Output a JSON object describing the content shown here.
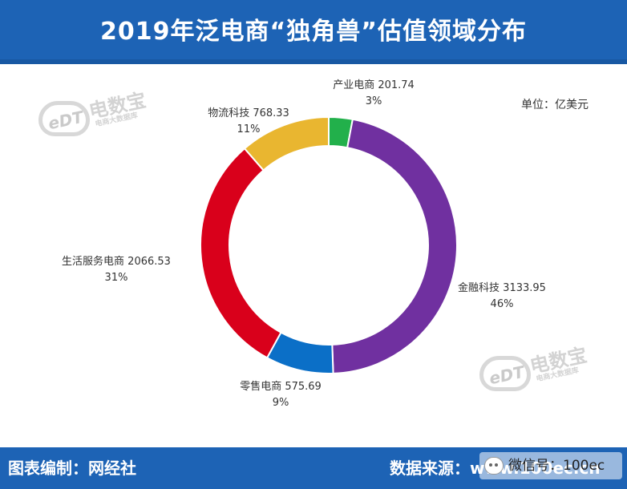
{
  "header": {
    "title": "2019年泛电商“独角兽”估值领域分布"
  },
  "unit_label": "单位：亿美元",
  "watermark": {
    "brand": "电数宝",
    "logo_text": "eDT",
    "sub": "电商大数据库"
  },
  "footer": {
    "credit": "图表编制：网经社",
    "source": "数据来源：www.100ec.cn",
    "wechat": "微信号：100ec"
  },
  "colors": {
    "header_bg": "#1d63b5",
    "industry": "#22b04b",
    "fintech": "#7030a0",
    "retail": "#0b6fc7",
    "local_services": "#d9001b",
    "logistics": "#e9b630"
  },
  "chart_data": {
    "type": "pie",
    "subtype": "donut",
    "title": "2019年泛电商“独角兽”估值领域分布",
    "unit": "亿美元",
    "series": [
      {
        "name": "产业电商",
        "value": 201.74,
        "percent": "3%",
        "color": "#22b04b",
        "value_text": "201.74"
      },
      {
        "name": "金融科技",
        "value": 3133.95,
        "percent": "46%",
        "color": "#7030a0",
        "value_text": "3133.95"
      },
      {
        "name": "零售电商",
        "value": 575.69,
        "percent": "9%",
        "color": "#0b6fc7",
        "value_text": "575.69"
      },
      {
        "name": "生活服务电商",
        "value": 2066.53,
        "percent": "31%",
        "color": "#d9001b",
        "value_text": "2066.53"
      },
      {
        "name": "物流科技",
        "value": 768.33,
        "percent": "11%",
        "color": "#e9b630",
        "value_text": "768.33"
      }
    ]
  }
}
